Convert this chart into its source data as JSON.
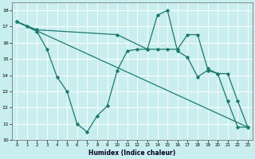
{
  "xlabel": "Humidex (Indice chaleur)",
  "bg_color": "#c8eef0",
  "grid_color": "#ffffff",
  "line_color": "#1a7a6e",
  "series1_x": [
    0,
    1,
    2,
    3,
    4,
    5,
    6,
    7,
    8,
    9,
    10,
    11,
    12,
    13,
    14,
    15,
    16,
    17,
    18,
    19,
    20,
    21,
    22,
    23
  ],
  "series1_y": [
    17.3,
    17.0,
    16.7,
    15.6,
    13.9,
    13.0,
    11.0,
    10.5,
    11.5,
    12.1,
    14.3,
    15.5,
    15.6,
    15.6,
    17.7,
    18.0,
    15.5,
    15.1,
    13.9,
    14.3,
    14.1,
    12.4,
    10.8,
    10.8
  ],
  "series2_x": [
    0,
    23
  ],
  "series2_y": [
    17.3,
    10.8
  ],
  "series3_x": [
    0,
    2,
    10,
    13,
    14,
    15,
    16,
    17,
    18,
    19,
    20,
    21,
    22,
    23
  ],
  "series3_y": [
    17.3,
    16.8,
    16.5,
    15.6,
    15.6,
    15.6,
    15.6,
    16.5,
    16.5,
    14.4,
    14.1,
    14.1,
    12.4,
    10.8
  ],
  "ylim": [
    10,
    18.5
  ],
  "xlim": [
    -0.5,
    23.5
  ],
  "yticks": [
    10,
    11,
    12,
    13,
    14,
    15,
    16,
    17,
    18
  ],
  "xticks": [
    0,
    1,
    2,
    3,
    4,
    5,
    6,
    7,
    8,
    9,
    10,
    11,
    12,
    13,
    14,
    15,
    16,
    17,
    18,
    19,
    20,
    21,
    22,
    23
  ]
}
